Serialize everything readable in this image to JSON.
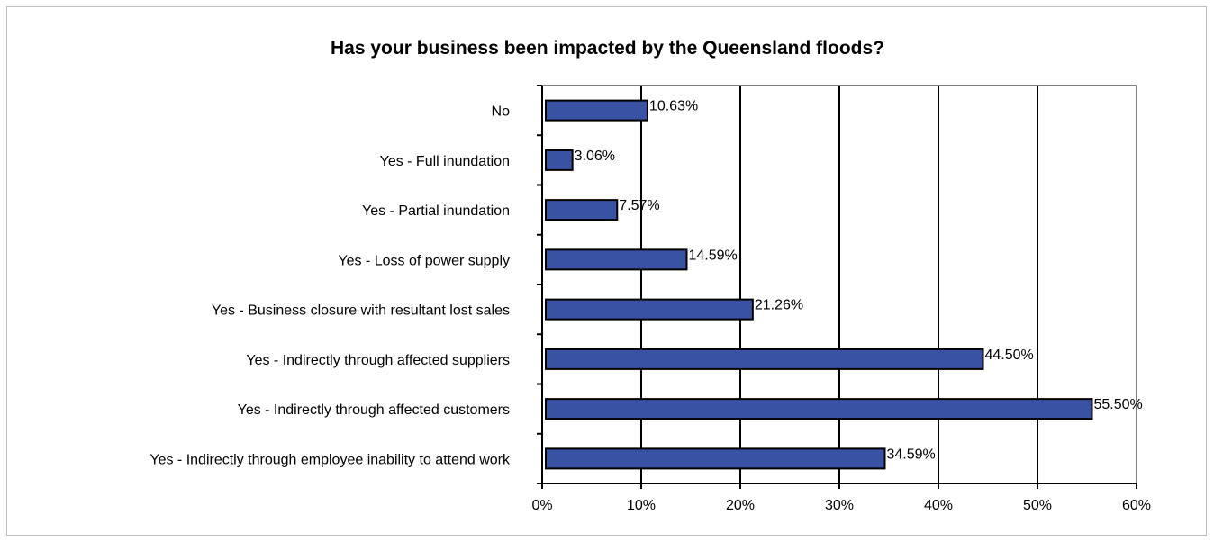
{
  "chart_data": {
    "type": "bar",
    "orientation": "horizontal",
    "title": "Has your business been impacted by the Queensland floods?",
    "xlabel": "",
    "ylabel": "",
    "xlim": [
      0,
      60
    ],
    "ticks": [
      "0%",
      "10%",
      "20%",
      "30%",
      "40%",
      "50%",
      "60%"
    ],
    "grid": true,
    "categories": [
      "No",
      "Yes - Full inundation",
      "Yes - Partial inundation",
      "Yes - Loss of power supply",
      "Yes - Business closure with resultant lost sales",
      "Yes - Indirectly through affected suppliers",
      "Yes - Indirectly through affected customers",
      "Yes - Indirectly through employee inability to attend work"
    ],
    "values": [
      10.63,
      3.06,
      7.57,
      14.59,
      21.26,
      44.5,
      55.5,
      34.59
    ],
    "value_labels": [
      "10.63%",
      "3.06%",
      "7.57%",
      "14.59%",
      "21.26%",
      "44.50%",
      "55.50%",
      "34.59%"
    ],
    "colors": {
      "bar": "#3a52a3",
      "bar_border": "#000000",
      "grid": "#000000",
      "axis": "#808080"
    }
  }
}
